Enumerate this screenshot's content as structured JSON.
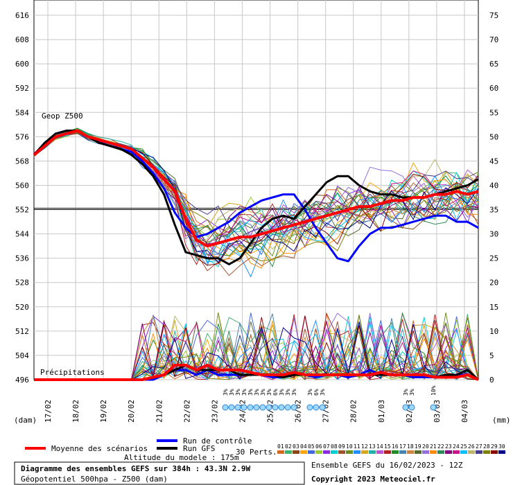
{
  "chart_data": {
    "type": "line",
    "title": "Diagramme des ensembles GEFS sur 384h : 43.3N 2.9W",
    "subtitle": "Géopotentiel 500hpa - Z500 (dam)",
    "run_info": "Ensemble GEFS du 16/02/2023 - 12Z",
    "copyright": "Copyright 2023 Meteociel.fr",
    "altitude": "Altitude du modele : 175m",
    "left_unit": "(dam)",
    "right_unit": "(mm)",
    "geop_label": "Geop Z500",
    "precip_label": "Précipitations",
    "yleft_ticks": [
      616,
      608,
      600,
      592,
      584,
      576,
      568,
      560,
      552,
      544,
      536,
      528,
      520,
      512,
      504,
      496
    ],
    "yright_ticks": [
      75,
      70,
      65,
      60,
      55,
      50,
      45,
      40,
      35,
      30,
      25,
      20,
      15,
      10,
      5,
      0
    ],
    "ylim_left": [
      496,
      616
    ],
    "ylim_right": [
      0,
      75
    ],
    "reference_line": 552,
    "x_labels": [
      "17/02",
      "18/02",
      "19/02",
      "20/02",
      "21/02",
      "22/02",
      "23/02",
      "24/02",
      "25/02",
      "26/02",
      "27/02",
      "28/02",
      "01/03",
      "02/03",
      "03/03",
      "04/03"
    ],
    "steps": 64,
    "snow_labels": [
      "3%",
      "3%",
      "3%",
      "3%",
      "3%",
      "3%",
      "3%",
      "3%",
      "6%",
      "3%",
      "3%",
      "3%",
      "3%",
      "6%",
      "3%",
      "3%",
      "3%",
      "10%"
    ],
    "legend": {
      "mean": "Moyenne des scénarios",
      "control": "Run de contrôle",
      "gfs": "Run GFS",
      "perts": "30 Perts.",
      "pert_numbers": [
        "01",
        "02",
        "03",
        "04",
        "05",
        "06",
        "07",
        "08",
        "09",
        "10",
        "11",
        "12",
        "13",
        "14",
        "15",
        "16",
        "17",
        "18",
        "19",
        "20",
        "21",
        "22",
        "23",
        "24",
        "25",
        "26",
        "27",
        "28",
        "29",
        "30"
      ],
      "pert_colors": [
        "#d2691e",
        "#3cb371",
        "#8b4513",
        "#ffa500",
        "#4169e1",
        "#9acd32",
        "#8a2be2",
        "#00ced1",
        "#a0522d",
        "#6b8e23",
        "#1e90ff",
        "#daa520",
        "#20b2aa",
        "#ba55d3",
        "#b22222",
        "#228b22",
        "#4682b4",
        "#cd853f",
        "#556b2f",
        "#9370db",
        "#ff8c00",
        "#2e8b57",
        "#800080",
        "#c71585",
        "#00bfff",
        "#bdb76b",
        "#483d8b",
        "#808000",
        "#8b0000",
        "#00008b"
      ]
    },
    "series": [
      {
        "name": "Moyenne des scénarios",
        "color": "#ff0000",
        "values": [
          570,
          573,
          576,
          577,
          578,
          576,
          575,
          574,
          573,
          572,
          569,
          566,
          562,
          558,
          549,
          542,
          540,
          541,
          542,
          543,
          543,
          544,
          545,
          546,
          547,
          548,
          549,
          550,
          551,
          552,
          553,
          553,
          554,
          555,
          555,
          556,
          556,
          557,
          557,
          558,
          557,
          558
        ],
        "precip": [
          0,
          0,
          0,
          0,
          0,
          0,
          0,
          0,
          0,
          0,
          0,
          0.5,
          1,
          3,
          3,
          2,
          3,
          2,
          2,
          2,
          1.5,
          1,
          1,
          1,
          1.5,
          1,
          1,
          1,
          1,
          1,
          1,
          1,
          1.5,
          1,
          1,
          1,
          1,
          0.5,
          0.5,
          0.5,
          1,
          0
        ]
      },
      {
        "name": "Run de contrôle",
        "color": "#0000ff",
        "values": [
          570,
          574,
          577,
          578,
          578,
          576,
          574,
          573,
          572,
          571,
          568,
          564,
          559,
          551,
          546,
          543,
          544,
          546,
          548,
          551,
          553,
          555,
          556,
          557,
          557,
          552,
          546,
          541,
          536,
          535,
          540,
          544,
          546,
          546,
          547,
          548,
          549,
          550,
          550,
          548,
          548,
          546
        ],
        "precip": [
          0,
          0,
          0,
          0,
          0,
          0,
          0,
          0,
          0,
          0,
          0,
          0,
          1,
          2,
          2,
          1,
          2,
          1,
          1,
          1,
          1,
          1,
          0.5,
          0.5,
          1,
          1,
          0.5,
          1,
          1,
          0.5,
          1,
          2,
          1,
          1,
          1,
          0.5,
          0.5,
          0.5,
          1,
          1,
          1,
          0
        ]
      },
      {
        "name": "Run GFS",
        "color": "#000000",
        "values": [
          570,
          574,
          577,
          578,
          578,
          576,
          574,
          573,
          572,
          570,
          567,
          563,
          557,
          547,
          538,
          537,
          536,
          536,
          534,
          536,
          541,
          546,
          549,
          550,
          549,
          553,
          557,
          561,
          563,
          563,
          560,
          558,
          557,
          557,
          556,
          556,
          556,
          557,
          558,
          559,
          560,
          562
        ],
        "precip": [
          0,
          0,
          0,
          0,
          0,
          0,
          0,
          0,
          0,
          0,
          0,
          0.5,
          1,
          2,
          3,
          2,
          2,
          2,
          2,
          1,
          1,
          1,
          1,
          0.5,
          1,
          1,
          1,
          1,
          1,
          1,
          1,
          1,
          1,
          1,
          1,
          1,
          1,
          0.5,
          1,
          1,
          2,
          0
        ]
      }
    ]
  }
}
